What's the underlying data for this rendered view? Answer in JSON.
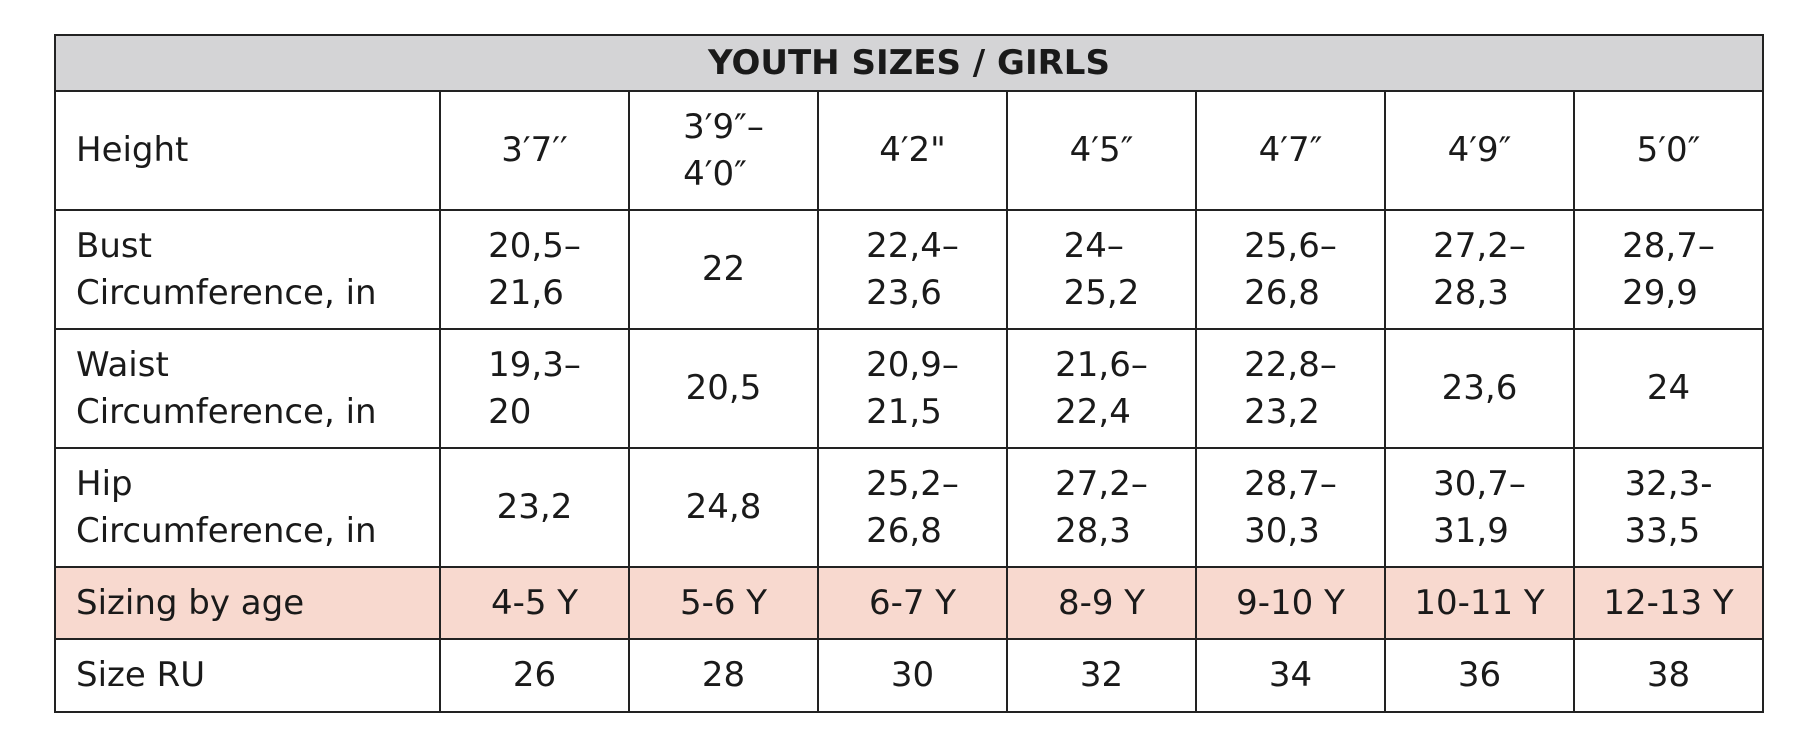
{
  "table": {
    "title": "YOUTH SIZES / GIRLS",
    "rows": [
      [
        "Height",
        "3′7′′",
        "3′9″–\n4′0″",
        "4′2\"",
        "4′5″",
        "4′7″",
        "4′9″",
        "5′0″"
      ],
      [
        "Bust\nCircumference, in",
        "20,5–\n21,6",
        "22",
        "22,4–\n23,6",
        "24–\n25,2",
        "25,6–\n26,8",
        "27,2–\n28,3",
        "28,7–\n29,9"
      ],
      [
        "Waist\nCircumference, in",
        "19,3–\n20",
        "20,5",
        "20,9–\n21,5",
        "21,6–\n22,4",
        "22,8–\n23,2",
        "23,6",
        "24"
      ],
      [
        "Hip\nCircumference, in",
        "23,2",
        "24,8",
        "25,2–\n26,8",
        "27,2–\n28,3",
        "28,7–\n30,3",
        "30,7–\n31,9",
        "32,3-\n33,5"
      ],
      [
        "Sizing by age",
        "4-5 Y",
        "5-6 Y",
        "6-7 Y",
        "8-9 Y",
        "9-10 Y",
        "10-11 Y",
        "12-13 Y"
      ],
      [
        "Size RU",
        "26",
        "28",
        "30",
        "32",
        "34",
        "36",
        "38"
      ]
    ]
  }
}
